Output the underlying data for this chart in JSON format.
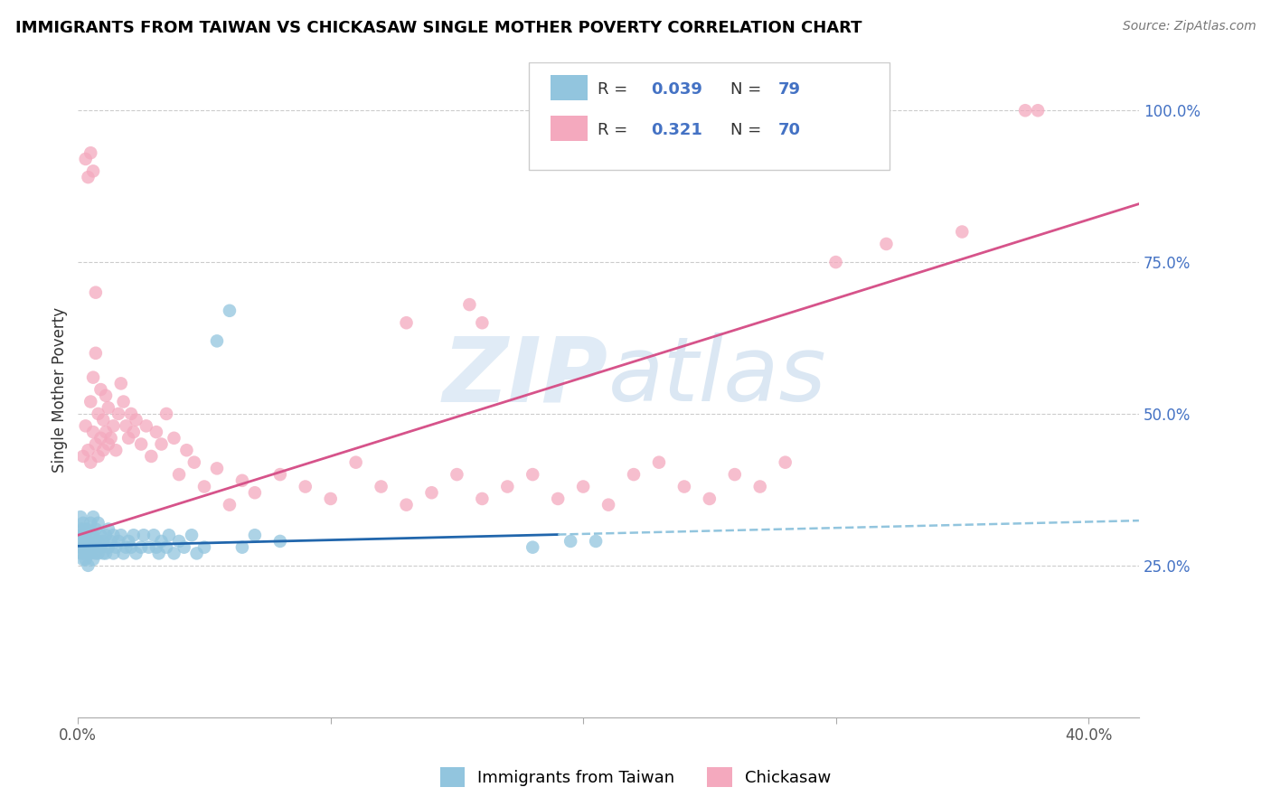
{
  "title": "IMMIGRANTS FROM TAIWAN VS CHICKASAW SINGLE MOTHER POVERTY CORRELATION CHART",
  "source": "Source: ZipAtlas.com",
  "ylabel": "Single Mother Poverty",
  "blue_color": "#92c5de",
  "pink_color": "#f4a9be",
  "blue_line_color": "#2166ac",
  "pink_line_color": "#d6538a",
  "blue_dash_color": "#92c5de",
  "legend_labels": [
    "Immigrants from Taiwan",
    "Chickasaw"
  ],
  "xlim": [
    0.0,
    0.42
  ],
  "ylim": [
    0.0,
    1.08
  ],
  "figsize": [
    14.06,
    8.92
  ],
  "dpi": 100,
  "taiwan_x": [
    0.001,
    0.001,
    0.001,
    0.001,
    0.001,
    0.002,
    0.002,
    0.002,
    0.002,
    0.002,
    0.002,
    0.002,
    0.003,
    0.003,
    0.003,
    0.003,
    0.003,
    0.003,
    0.004,
    0.004,
    0.004,
    0.004,
    0.004,
    0.005,
    0.005,
    0.005,
    0.005,
    0.006,
    0.006,
    0.006,
    0.006,
    0.007,
    0.007,
    0.007,
    0.008,
    0.008,
    0.008,
    0.009,
    0.009,
    0.01,
    0.01,
    0.011,
    0.011,
    0.012,
    0.012,
    0.013,
    0.014,
    0.014,
    0.015,
    0.016,
    0.017,
    0.018,
    0.019,
    0.02,
    0.021,
    0.022,
    0.023,
    0.025,
    0.026,
    0.028,
    0.03,
    0.031,
    0.032,
    0.033,
    0.035,
    0.036,
    0.038,
    0.04,
    0.042,
    0.045,
    0.047,
    0.05,
    0.055,
    0.06,
    0.065,
    0.07,
    0.08,
    0.18,
    0.195,
    0.205
  ],
  "taiwan_y": [
    0.27,
    0.28,
    0.3,
    0.31,
    0.33,
    0.26,
    0.27,
    0.28,
    0.29,
    0.3,
    0.31,
    0.32,
    0.26,
    0.27,
    0.28,
    0.29,
    0.3,
    0.31,
    0.25,
    0.27,
    0.28,
    0.29,
    0.31,
    0.27,
    0.28,
    0.3,
    0.32,
    0.26,
    0.28,
    0.3,
    0.33,
    0.27,
    0.29,
    0.31,
    0.27,
    0.29,
    0.32,
    0.28,
    0.3,
    0.27,
    0.29,
    0.27,
    0.3,
    0.28,
    0.31,
    0.29,
    0.27,
    0.3,
    0.28,
    0.29,
    0.3,
    0.27,
    0.28,
    0.29,
    0.28,
    0.3,
    0.27,
    0.28,
    0.3,
    0.28,
    0.3,
    0.28,
    0.27,
    0.29,
    0.28,
    0.3,
    0.27,
    0.29,
    0.28,
    0.3,
    0.27,
    0.28,
    0.62,
    0.67,
    0.28,
    0.3,
    0.29,
    0.28,
    0.29,
    0.29
  ],
  "chickasaw_x": [
    0.002,
    0.003,
    0.004,
    0.005,
    0.005,
    0.006,
    0.006,
    0.007,
    0.007,
    0.008,
    0.008,
    0.009,
    0.009,
    0.01,
    0.01,
    0.011,
    0.011,
    0.012,
    0.012,
    0.013,
    0.014,
    0.015,
    0.016,
    0.017,
    0.018,
    0.019,
    0.02,
    0.021,
    0.022,
    0.023,
    0.025,
    0.027,
    0.029,
    0.031,
    0.033,
    0.035,
    0.038,
    0.04,
    0.043,
    0.046,
    0.05,
    0.055,
    0.06,
    0.065,
    0.07,
    0.08,
    0.09,
    0.1,
    0.11,
    0.12,
    0.13,
    0.14,
    0.15,
    0.16,
    0.17,
    0.18,
    0.19,
    0.2,
    0.21,
    0.22,
    0.23,
    0.24,
    0.25,
    0.26,
    0.27,
    0.28,
    0.3,
    0.32,
    0.35,
    0.38
  ],
  "chickasaw_y": [
    0.43,
    0.48,
    0.44,
    0.42,
    0.52,
    0.47,
    0.56,
    0.45,
    0.6,
    0.43,
    0.5,
    0.46,
    0.54,
    0.44,
    0.49,
    0.47,
    0.53,
    0.45,
    0.51,
    0.46,
    0.48,
    0.44,
    0.5,
    0.55,
    0.52,
    0.48,
    0.46,
    0.5,
    0.47,
    0.49,
    0.45,
    0.48,
    0.43,
    0.47,
    0.45,
    0.5,
    0.46,
    0.4,
    0.44,
    0.42,
    0.38,
    0.41,
    0.35,
    0.39,
    0.37,
    0.4,
    0.38,
    0.36,
    0.42,
    0.38,
    0.35,
    0.37,
    0.4,
    0.36,
    0.38,
    0.4,
    0.36,
    0.38,
    0.35,
    0.4,
    0.42,
    0.38,
    0.36,
    0.4,
    0.38,
    0.42,
    0.75,
    0.78,
    0.8,
    1.0
  ],
  "chickasaw_high_x": [
    0.003,
    0.004,
    0.005,
    0.006,
    0.007,
    0.13,
    0.155,
    0.16,
    0.375
  ],
  "chickasaw_high_y": [
    0.92,
    0.89,
    0.93,
    0.9,
    0.7,
    0.65,
    0.68,
    0.65,
    1.0
  ]
}
